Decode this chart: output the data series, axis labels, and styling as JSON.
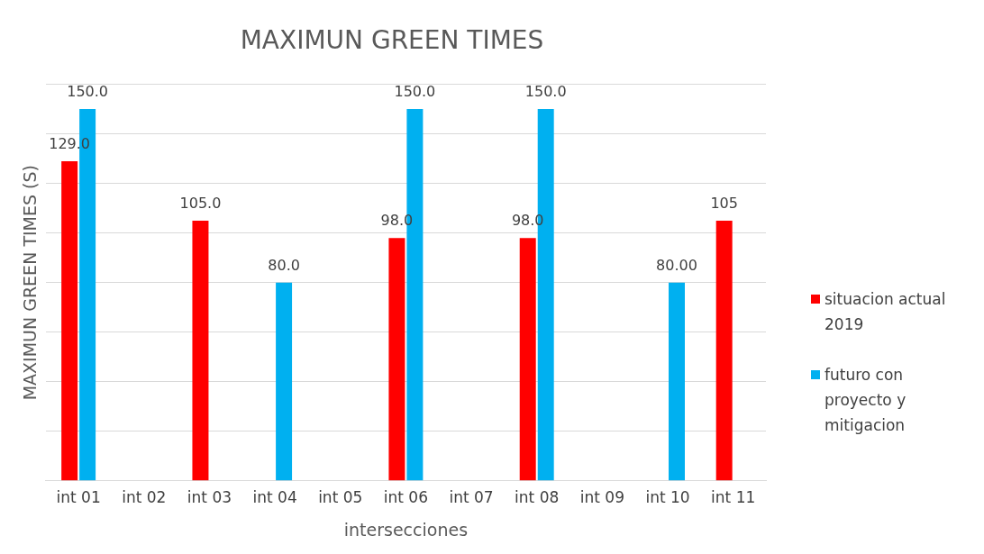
{
  "chart_data": {
    "type": "bar",
    "title": "MAXIMUN GREEN TIMES",
    "xlabel": "intersecciones",
    "ylabel": "MAXIMUN GREEN TIMES (S)",
    "categories": [
      "int 01",
      "int 02",
      "int 03",
      "int 04",
      "int 05",
      "int 06",
      "int 07",
      "int 08",
      "int 09",
      "int 10",
      "int 11"
    ],
    "series": [
      {
        "name": "situacion actual 2019",
        "color": "#ff0000",
        "values": [
          129,
          null,
          105,
          null,
          null,
          98,
          null,
          98,
          null,
          null,
          105
        ],
        "value_labels": [
          "129.0",
          null,
          "105.0",
          null,
          null,
          "98.0",
          null,
          "98.0",
          null,
          null,
          "105"
        ]
      },
      {
        "name": "futuro con proyecto y mitigacion",
        "color": "#00b0f0",
        "values": [
          150,
          null,
          null,
          80,
          null,
          150,
          null,
          150,
          null,
          80,
          null
        ],
        "value_labels": [
          "150.0",
          null,
          null,
          "80.0",
          null,
          "150.0",
          null,
          "150.0",
          null,
          "80.00",
          null
        ]
      }
    ],
    "ylim": [
      0,
      160
    ],
    "yticks": [
      {
        "value": 0,
        "label": null
      },
      {
        "value": 20,
        "label": null
      },
      {
        "value": 40,
        "label": null
      },
      {
        "value": 60,
        "label": null
      },
      {
        "value": 80,
        "label": null
      },
      {
        "value": 100,
        "label": null
      },
      {
        "value": 120,
        "label": null
      },
      {
        "value": 140,
        "label": null
      },
      {
        "value": 160,
        "label": null
      }
    ],
    "tick_labels": "x",
    "grid": "y",
    "legend": "right"
  }
}
